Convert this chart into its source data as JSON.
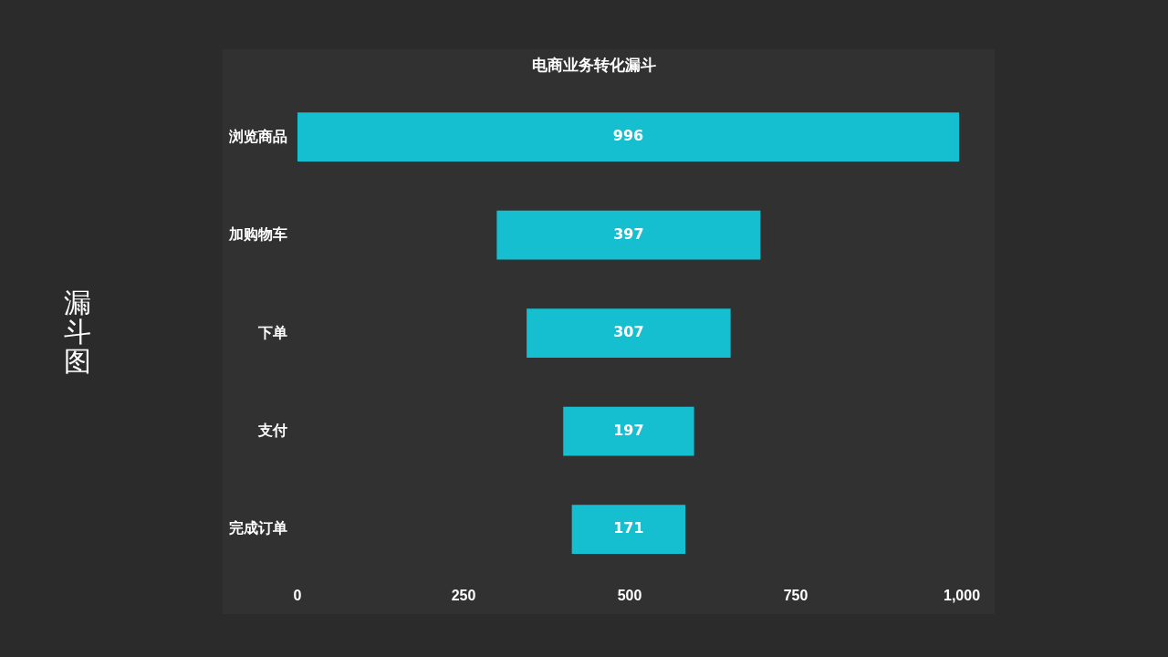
{
  "chart_data": {
    "type": "bar",
    "orientation": "horizontal",
    "title": "电商业务转化漏斗",
    "categories": [
      "浏览商品",
      "加购物车",
      "下单",
      "支付",
      "完成订单"
    ],
    "values": [
      996,
      397,
      307,
      197,
      171
    ],
    "base": [
      0,
      300,
      345,
      400,
      413
    ],
    "color": "#16bfcf",
    "xlim": [
      0,
      1000
    ],
    "xticks": [
      0,
      250,
      500,
      750,
      {
        "value": 1000,
        "label": "1,000"
      }
    ],
    "data_labels": true,
    "annotations": [
      "漏斗图"
    ]
  }
}
